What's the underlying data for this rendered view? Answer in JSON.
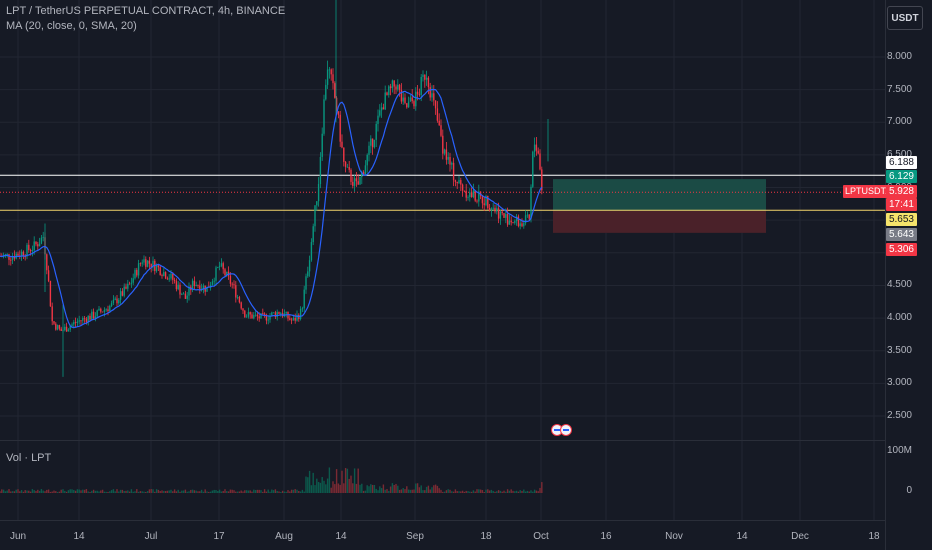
{
  "legend": {
    "symbol_line": "LPT / TetherUS PERPETUAL CONTRACT, 4h, BINANCE",
    "ma_line": "MA (20, close, 0, SMA, 20)",
    "volume_label": "Vol · LPT"
  },
  "currency_button": "USDT",
  "y_axis": {
    "ticks": [
      "8.000",
      "7.500",
      "7.000",
      "6.500",
      "6.000",
      "5.500",
      "5.000",
      "4.500",
      "4.000",
      "3.500",
      "3.000",
      "2.500"
    ],
    "tick_values": [
      8.0,
      7.5,
      7.0,
      6.5,
      6.0,
      5.5,
      5.0,
      4.5,
      4.0,
      3.5,
      3.0,
      2.5
    ]
  },
  "volume_axis": {
    "ticks": [
      "100M",
      "0"
    ]
  },
  "x_axis": {
    "ticks": [
      "Jun",
      "14",
      "Jul",
      "17",
      "Aug",
      "14",
      "Sep",
      "18",
      "Oct",
      "16",
      "Nov",
      "14",
      "Dec",
      "18"
    ]
  },
  "price_labels": {
    "upper_line": "6.188",
    "target": "6.129",
    "symbol_tag": "LPTUSDT.P",
    "last_price": "5.928",
    "countdown": "17:41",
    "lower_line": "5.653",
    "entry": "5.643",
    "stop": "5.306"
  },
  "colors": {
    "background": "#161a25",
    "grid": "#222632",
    "candle_up": "#089981",
    "candle_down": "#f23645",
    "ma_line": "#2962ff",
    "profit_zone": "#1b4b45",
    "loss_zone": "#4a2129",
    "level_white": "#ffffff",
    "level_yellow": "#f2d36b",
    "label_target": "#089981",
    "label_stop": "#f23645",
    "label_yellow": "#f5e36b",
    "label_entry": "#787b86"
  },
  "icons": [
    "us-flag-event-icon",
    "us-flag-event-icon"
  ],
  "chart_data": {
    "type": "candlestick",
    "title": "LPT / TetherUS PERPETUAL CONTRACT, 4h, BINANCE",
    "ylim": [
      2.25,
      8.7
    ],
    "grid": true,
    "x_tick_labels": [
      "Jun",
      "14",
      "Jul",
      "17",
      "Aug",
      "14",
      "Sep",
      "18",
      "Oct",
      "16",
      "Nov",
      "14",
      "Dec",
      "18"
    ],
    "price_series": [
      {
        "date": "2023-06-01",
        "close": 4.95
      },
      {
        "date": "2023-06-04",
        "close": 5.0
      },
      {
        "date": "2023-06-07",
        "close": 5.1
      },
      {
        "date": "2023-06-09",
        "close": 5.25
      },
      {
        "date": "2023-06-10",
        "close": 4.7
      },
      {
        "date": "2023-06-11",
        "close": 3.95
      },
      {
        "date": "2023-06-13",
        "close": 3.8
      },
      {
        "date": "2023-06-17",
        "close": 3.95
      },
      {
        "date": "2023-06-21",
        "close": 4.05
      },
      {
        "date": "2023-06-25",
        "close": 4.2
      },
      {
        "date": "2023-06-29",
        "close": 4.5
      },
      {
        "date": "2023-07-02",
        "close": 4.9
      },
      {
        "date": "2023-07-05",
        "close": 4.8
      },
      {
        "date": "2023-07-09",
        "close": 4.6
      },
      {
        "date": "2023-07-12",
        "close": 4.3
      },
      {
        "date": "2023-07-14",
        "close": 4.55
      },
      {
        "date": "2023-07-17",
        "close": 4.45
      },
      {
        "date": "2023-07-20",
        "close": 4.8
      },
      {
        "date": "2023-07-23",
        "close": 4.5
      },
      {
        "date": "2023-07-26",
        "close": 4.05
      },
      {
        "date": "2023-07-30",
        "close": 4.0
      },
      {
        "date": "2023-08-03",
        "close": 4.1
      },
      {
        "date": "2023-08-06",
        "close": 3.95
      },
      {
        "date": "2023-08-08",
        "close": 4.1
      },
      {
        "date": "2023-08-10",
        "close": 5.0
      },
      {
        "date": "2023-08-12",
        "close": 6.1
      },
      {
        "date": "2023-08-13",
        "close": 7.1
      },
      {
        "date": "2023-08-14",
        "close": 7.9
      },
      {
        "date": "2023-08-16",
        "close": 7.3
      },
      {
        "date": "2023-08-18",
        "close": 6.3
      },
      {
        "date": "2023-08-21",
        "close": 6.0
      },
      {
        "date": "2023-08-24",
        "close": 6.6
      },
      {
        "date": "2023-08-27",
        "close": 7.3
      },
      {
        "date": "2023-08-30",
        "close": 7.6
      },
      {
        "date": "2023-09-01",
        "close": 7.2
      },
      {
        "date": "2023-09-04",
        "close": 7.4
      },
      {
        "date": "2023-09-06",
        "close": 7.8
      },
      {
        "date": "2023-09-08",
        "close": 7.2
      },
      {
        "date": "2023-09-10",
        "close": 6.6
      },
      {
        "date": "2023-09-13",
        "close": 6.1
      },
      {
        "date": "2023-09-16",
        "close": 5.9
      },
      {
        "date": "2023-09-20",
        "close": 5.8
      },
      {
        "date": "2023-09-24",
        "close": 5.55
      },
      {
        "date": "2023-09-28",
        "close": 5.45
      },
      {
        "date": "2023-09-30",
        "close": 5.5
      },
      {
        "date": "2023-10-01",
        "close": 6.7
      },
      {
        "date": "2023-10-02",
        "close": 6.6
      },
      {
        "date": "2023-10-03",
        "close": 5.93
      }
    ],
    "position": {
      "target": 6.129,
      "entry": 5.643,
      "stop": 5.306
    },
    "levels": [
      6.188,
      5.653
    ],
    "volume_ylim": [
      0,
      100000000
    ]
  }
}
